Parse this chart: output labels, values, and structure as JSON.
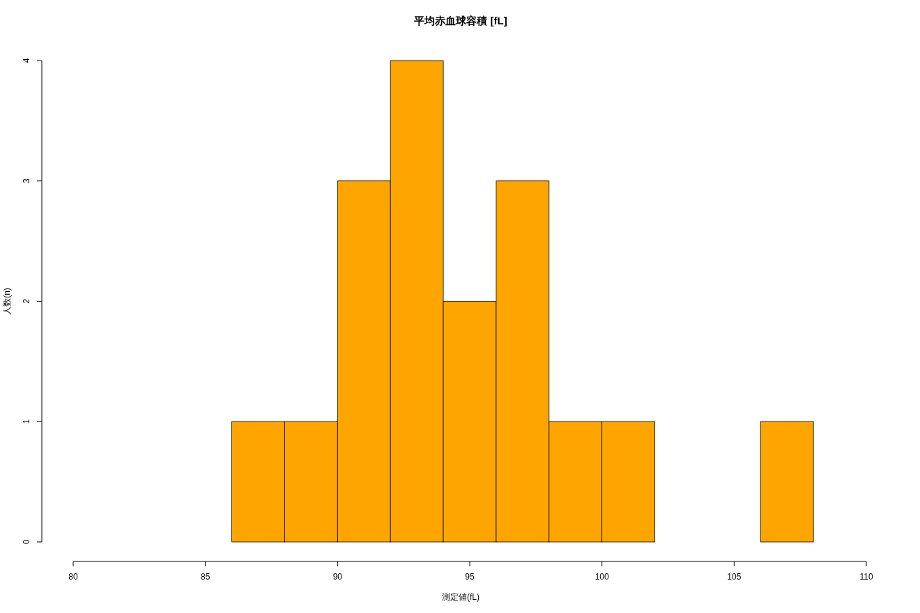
{
  "chart_data": {
    "type": "histogram",
    "title": "平均赤血球容積 [fL]",
    "xlabel": "測定値(fL)",
    "ylabel": "人数(n)",
    "bins": [
      86,
      88,
      90,
      92,
      94,
      96,
      98,
      100,
      102,
      104,
      106,
      108
    ],
    "values": [
      1,
      1,
      3,
      4,
      2,
      3,
      1,
      1,
      0,
      0,
      1
    ],
    "color": "#ffa500",
    "xlim": [
      80,
      110
    ],
    "xticks": [
      80,
      85,
      90,
      95,
      100,
      105,
      110
    ],
    "ylim": [
      0,
      4
    ],
    "yticks": [
      0,
      1,
      2,
      3,
      4
    ]
  }
}
